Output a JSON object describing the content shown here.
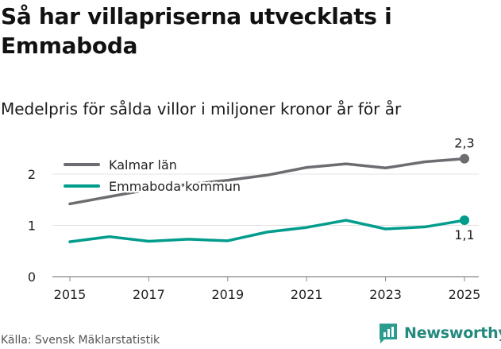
{
  "title": "Så har villapriserna utvecklats i Emmaboda",
  "subtitle": "Medelpris för sålda villor i miljoner kronor år för år",
  "source": "Källa: Svensk Mäklarstatistik",
  "brand": {
    "name": "Newsworthy",
    "icon": "newsworthy-logo-icon",
    "color": "#2a9d8f"
  },
  "colors": {
    "kalmar": "#6d6c70",
    "emmaboda": "#009c8c",
    "axis": "#888888",
    "grid": "#e3e3e3"
  },
  "chart_data": {
    "type": "line",
    "title": "Medelpris för sålda villor i miljoner kronor år för år",
    "xlabel": "",
    "ylabel": "",
    "x": [
      2015,
      2016,
      2017,
      2018,
      2019,
      2020,
      2021,
      2022,
      2023,
      2024,
      2025
    ],
    "xticks": [
      "2015",
      "2017",
      "2019",
      "2021",
      "2023",
      "2025"
    ],
    "yticks": [
      "0",
      "1",
      "2"
    ],
    "ylim": [
      0,
      2.5
    ],
    "legend_position": "top-left",
    "series": [
      {
        "name": "Kalmar län",
        "color": "#6d6c70",
        "values": [
          1.42,
          1.56,
          1.7,
          1.8,
          1.88,
          1.98,
          2.13,
          2.2,
          2.12,
          2.24,
          2.3
        ],
        "end_label": "2,3"
      },
      {
        "name": "Emmaboda kommun",
        "color": "#009c8c",
        "values": [
          0.68,
          0.78,
          0.69,
          0.73,
          0.7,
          0.87,
          0.96,
          1.1,
          0.93,
          0.97,
          1.1
        ],
        "end_label": "1,1"
      }
    ]
  }
}
